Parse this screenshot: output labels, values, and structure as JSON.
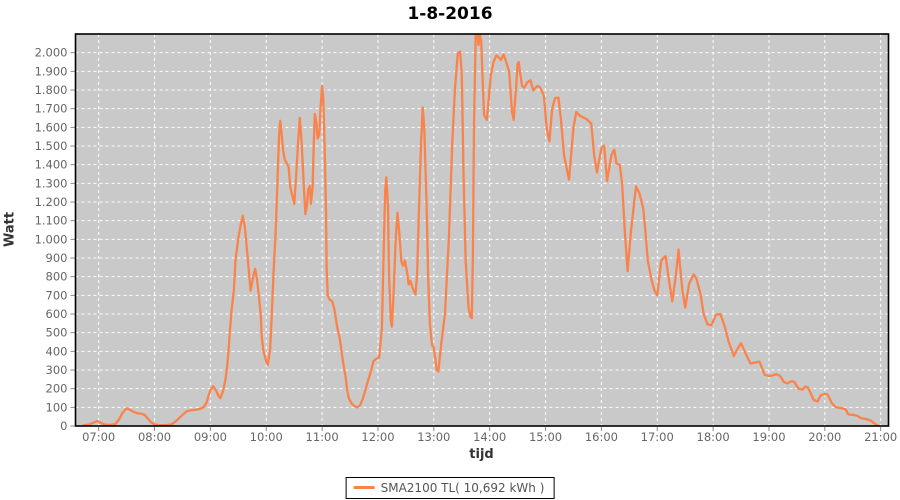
{
  "chart_data": {
    "type": "line",
    "title": "1-8-2016",
    "xlabel": "tijd",
    "ylabel": "Watt",
    "x_range": [
      6.585,
      21.14
    ],
    "y_range": [
      0,
      2100
    ],
    "grid": "white dashed on gray plot background",
    "legend_position": "bottom-center",
    "colors": {
      "plot_background": "#c9c9c9",
      "grid": "#ffffff",
      "series": "#F9834B",
      "plot_border": "#000000",
      "tick_text": "#666666"
    },
    "x_ticks": {
      "values": [
        7,
        8,
        9,
        10,
        11,
        12,
        13,
        14,
        15,
        16,
        17,
        18,
        19,
        20,
        21
      ],
      "labels": [
        "07:00",
        "08:00",
        "09:00",
        "10:00",
        "11:00",
        "12:00",
        "13:00",
        "14:00",
        "15:00",
        "16:00",
        "17:00",
        "18:00",
        "19:00",
        "20:00",
        "21:00"
      ]
    },
    "y_ticks": {
      "values": [
        0,
        100,
        200,
        300,
        400,
        500,
        600,
        700,
        800,
        900,
        1000,
        1100,
        1200,
        1300,
        1400,
        1500,
        1600,
        1700,
        1800,
        1900,
        2000
      ],
      "labels": [
        "0",
        "100",
        "200",
        "300",
        "400",
        "500",
        "600",
        "700",
        "800",
        "900",
        "1.000",
        "1.100",
        "1.200",
        "1.300",
        "1.400",
        "1.500",
        "1.600",
        "1.700",
        "1.800",
        "1.900",
        "2.000"
      ]
    },
    "series": [
      {
        "name": "SMA2100 TL( 10,692 kWh )",
        "color": "#F9834B",
        "points": [
          [
            6.73,
            3
          ],
          [
            6.83,
            8
          ],
          [
            6.92,
            20
          ],
          [
            6.98,
            27
          ],
          [
            7.03,
            18
          ],
          [
            7.1,
            8
          ],
          [
            7.2,
            6
          ],
          [
            7.3,
            10
          ],
          [
            7.37,
            38
          ],
          [
            7.43,
            72
          ],
          [
            7.5,
            95
          ],
          [
            7.57,
            85
          ],
          [
            7.63,
            75
          ],
          [
            7.7,
            68
          ],
          [
            7.78,
            65
          ],
          [
            7.83,
            58
          ],
          [
            7.88,
            40
          ],
          [
            7.93,
            22
          ],
          [
            8.0,
            8
          ],
          [
            8.1,
            5
          ],
          [
            8.2,
            5
          ],
          [
            8.3,
            8
          ],
          [
            8.38,
            25
          ],
          [
            8.45,
            45
          ],
          [
            8.52,
            65
          ],
          [
            8.58,
            80
          ],
          [
            8.67,
            85
          ],
          [
            8.75,
            88
          ],
          [
            8.83,
            93
          ],
          [
            8.88,
            102
          ],
          [
            8.93,
            125
          ],
          [
            8.97,
            165
          ],
          [
            9.0,
            192
          ],
          [
            9.05,
            213
          ],
          [
            9.1,
            190
          ],
          [
            9.15,
            158
          ],
          [
            9.18,
            150
          ],
          [
            9.23,
            190
          ],
          [
            9.27,
            250
          ],
          [
            9.3,
            320
          ],
          [
            9.33,
            420
          ],
          [
            9.35,
            510
          ],
          [
            9.38,
            620
          ],
          [
            9.42,
            730
          ],
          [
            9.45,
            890
          ],
          [
            9.5,
            1005
          ],
          [
            9.55,
            1090
          ],
          [
            9.58,
            1127
          ],
          [
            9.62,
            1060
          ],
          [
            9.65,
            960
          ],
          [
            9.7,
            790
          ],
          [
            9.72,
            725
          ],
          [
            9.77,
            805
          ],
          [
            9.8,
            842
          ],
          [
            9.83,
            795
          ],
          [
            9.87,
            690
          ],
          [
            9.9,
            600
          ],
          [
            9.92,
            475
          ],
          [
            9.95,
            400
          ],
          [
            10.0,
            345
          ],
          [
            10.03,
            327
          ],
          [
            10.07,
            420
          ],
          [
            10.1,
            600
          ],
          [
            10.13,
            815
          ],
          [
            10.17,
            1047
          ],
          [
            10.2,
            1300
          ],
          [
            10.23,
            1560
          ],
          [
            10.25,
            1635
          ],
          [
            10.28,
            1550
          ],
          [
            10.3,
            1480
          ],
          [
            10.33,
            1430
          ],
          [
            10.37,
            1405
          ],
          [
            10.4,
            1390
          ],
          [
            10.43,
            1280
          ],
          [
            10.47,
            1230
          ],
          [
            10.5,
            1190
          ],
          [
            10.53,
            1320
          ],
          [
            10.57,
            1520
          ],
          [
            10.6,
            1650
          ],
          [
            10.63,
            1540
          ],
          [
            10.67,
            1300
          ],
          [
            10.7,
            1135
          ],
          [
            10.73,
            1185
          ],
          [
            10.75,
            1265
          ],
          [
            10.78,
            1285
          ],
          [
            10.8,
            1190
          ],
          [
            10.83,
            1280
          ],
          [
            10.85,
            1500
          ],
          [
            10.87,
            1672
          ],
          [
            10.9,
            1620
          ],
          [
            10.92,
            1540
          ],
          [
            10.95,
            1560
          ],
          [
            10.97,
            1690
          ],
          [
            11.0,
            1822
          ],
          [
            11.02,
            1760
          ],
          [
            11.03,
            1665
          ],
          [
            11.05,
            1430
          ],
          [
            11.07,
            1150
          ],
          [
            11.08,
            850
          ],
          [
            11.1,
            700
          ],
          [
            11.13,
            678
          ],
          [
            11.18,
            668
          ],
          [
            11.22,
            625
          ],
          [
            11.27,
            530
          ],
          [
            11.32,
            460
          ],
          [
            11.37,
            352
          ],
          [
            11.42,
            262
          ],
          [
            11.45,
            192
          ],
          [
            11.48,
            148
          ],
          [
            11.53,
            120
          ],
          [
            11.58,
            106
          ],
          [
            11.63,
            100
          ],
          [
            11.68,
            112
          ],
          [
            11.73,
            146
          ],
          [
            11.78,
            200
          ],
          [
            11.83,
            252
          ],
          [
            11.88,
            300
          ],
          [
            11.92,
            348
          ],
          [
            11.97,
            360
          ],
          [
            12.02,
            366
          ],
          [
            12.07,
            520
          ],
          [
            12.1,
            920
          ],
          [
            12.13,
            1260
          ],
          [
            12.15,
            1332
          ],
          [
            12.18,
            1180
          ],
          [
            12.2,
            800
          ],
          [
            12.23,
            565
          ],
          [
            12.25,
            532
          ],
          [
            12.28,
            710
          ],
          [
            12.32,
            1010
          ],
          [
            12.35,
            1142
          ],
          [
            12.38,
            1040
          ],
          [
            12.42,
            880
          ],
          [
            12.45,
            858
          ],
          [
            12.48,
            886
          ],
          [
            12.52,
            828
          ],
          [
            12.55,
            758
          ],
          [
            12.58,
            778
          ],
          [
            12.62,
            738
          ],
          [
            12.67,
            705
          ],
          [
            12.7,
            808
          ],
          [
            12.73,
            1110
          ],
          [
            12.77,
            1510
          ],
          [
            12.8,
            1706
          ],
          [
            12.83,
            1590
          ],
          [
            12.87,
            1180
          ],
          [
            12.9,
            790
          ],
          [
            12.93,
            545
          ],
          [
            12.97,
            432
          ],
          [
            13.0,
            420
          ],
          [
            13.05,
            302
          ],
          [
            13.08,
            292
          ],
          [
            13.13,
            432
          ],
          [
            13.2,
            605
          ],
          [
            13.27,
            1010
          ],
          [
            13.33,
            1520
          ],
          [
            13.38,
            1810
          ],
          [
            13.43,
            1996
          ],
          [
            13.47,
            2006
          ],
          [
            13.5,
            1880
          ],
          [
            13.53,
            1380
          ],
          [
            13.57,
            880
          ],
          [
            13.62,
            640
          ],
          [
            13.65,
            588
          ],
          [
            13.68,
            578
          ],
          [
            13.7,
            920
          ],
          [
            13.72,
            1620
          ],
          [
            13.75,
            2092
          ],
          [
            13.77,
            2150
          ],
          [
            13.8,
            2040
          ],
          [
            13.82,
            2110
          ],
          [
            13.85,
            2055
          ],
          [
            13.87,
            1890
          ],
          [
            13.9,
            1665
          ],
          [
            13.95,
            1640
          ],
          [
            14.02,
            1878
          ],
          [
            14.07,
            1952
          ],
          [
            14.12,
            1986
          ],
          [
            14.17,
            1972
          ],
          [
            14.2,
            1962
          ],
          [
            14.25,
            1990
          ],
          [
            14.3,
            1948
          ],
          [
            14.35,
            1896
          ],
          [
            14.4,
            1682
          ],
          [
            14.43,
            1640
          ],
          [
            14.47,
            1800
          ],
          [
            14.5,
            1940
          ],
          [
            14.52,
            1950
          ],
          [
            14.55,
            1882
          ],
          [
            14.58,
            1822
          ],
          [
            14.62,
            1812
          ],
          [
            14.67,
            1840
          ],
          [
            14.73,
            1852
          ],
          [
            14.78,
            1798
          ],
          [
            14.85,
            1822
          ],
          [
            14.9,
            1815
          ],
          [
            14.97,
            1770
          ],
          [
            15.02,
            1592
          ],
          [
            15.07,
            1525
          ],
          [
            15.12,
            1700
          ],
          [
            15.17,
            1756
          ],
          [
            15.23,
            1760
          ],
          [
            15.28,
            1628
          ],
          [
            15.33,
            1452
          ],
          [
            15.42,
            1320
          ],
          [
            15.5,
            1600
          ],
          [
            15.55,
            1682
          ],
          [
            15.62,
            1660
          ],
          [
            15.68,
            1652
          ],
          [
            15.73,
            1645
          ],
          [
            15.82,
            1620
          ],
          [
            15.87,
            1452
          ],
          [
            15.92,
            1358
          ],
          [
            16.0,
            1488
          ],
          [
            16.05,
            1502
          ],
          [
            16.1,
            1312
          ],
          [
            16.18,
            1450
          ],
          [
            16.23,
            1480
          ],
          [
            16.27,
            1406
          ],
          [
            16.33,
            1400
          ],
          [
            16.37,
            1298
          ],
          [
            16.42,
            1038
          ],
          [
            16.47,
            830
          ],
          [
            16.53,
            1047
          ],
          [
            16.62,
            1283
          ],
          [
            16.68,
            1247
          ],
          [
            16.75,
            1163
          ],
          [
            16.78,
            1065
          ],
          [
            16.83,
            886
          ],
          [
            16.9,
            779
          ],
          [
            16.95,
            725
          ],
          [
            17.0,
            700
          ],
          [
            17.07,
            886
          ],
          [
            17.15,
            910
          ],
          [
            17.22,
            761
          ],
          [
            17.27,
            668
          ],
          [
            17.33,
            800
          ],
          [
            17.38,
            945
          ],
          [
            17.45,
            725
          ],
          [
            17.5,
            635
          ],
          [
            17.57,
            761
          ],
          [
            17.65,
            812
          ],
          [
            17.7,
            790
          ],
          [
            17.78,
            700
          ],
          [
            17.83,
            600
          ],
          [
            17.9,
            545
          ],
          [
            17.97,
            540
          ],
          [
            18.05,
            595
          ],
          [
            18.13,
            600
          ],
          [
            18.2,
            540
          ],
          [
            18.28,
            450
          ],
          [
            18.37,
            375
          ],
          [
            18.45,
            420
          ],
          [
            18.5,
            443
          ],
          [
            18.58,
            390
          ],
          [
            18.67,
            335
          ],
          [
            18.75,
            340
          ],
          [
            18.83,
            345
          ],
          [
            18.92,
            275
          ],
          [
            19.0,
            268
          ],
          [
            19.08,
            272
          ],
          [
            19.13,
            278
          ],
          [
            19.2,
            268
          ],
          [
            19.27,
            235
          ],
          [
            19.33,
            228
          ],
          [
            19.4,
            240
          ],
          [
            19.45,
            238
          ],
          [
            19.53,
            200
          ],
          [
            19.6,
            195
          ],
          [
            19.65,
            212
          ],
          [
            19.7,
            205
          ],
          [
            19.8,
            140
          ],
          [
            19.87,
            132
          ],
          [
            19.93,
            165
          ],
          [
            20.0,
            172
          ],
          [
            20.05,
            168
          ],
          [
            20.13,
            120
          ],
          [
            20.2,
            100
          ],
          [
            20.3,
            95
          ],
          [
            20.37,
            90
          ],
          [
            20.42,
            62
          ],
          [
            20.5,
            60
          ],
          [
            20.58,
            55
          ],
          [
            20.65,
            42
          ],
          [
            20.73,
            38
          ],
          [
            20.83,
            28
          ],
          [
            20.88,
            15
          ],
          [
            20.93,
            5
          ],
          [
            20.97,
            0
          ]
        ]
      }
    ]
  }
}
